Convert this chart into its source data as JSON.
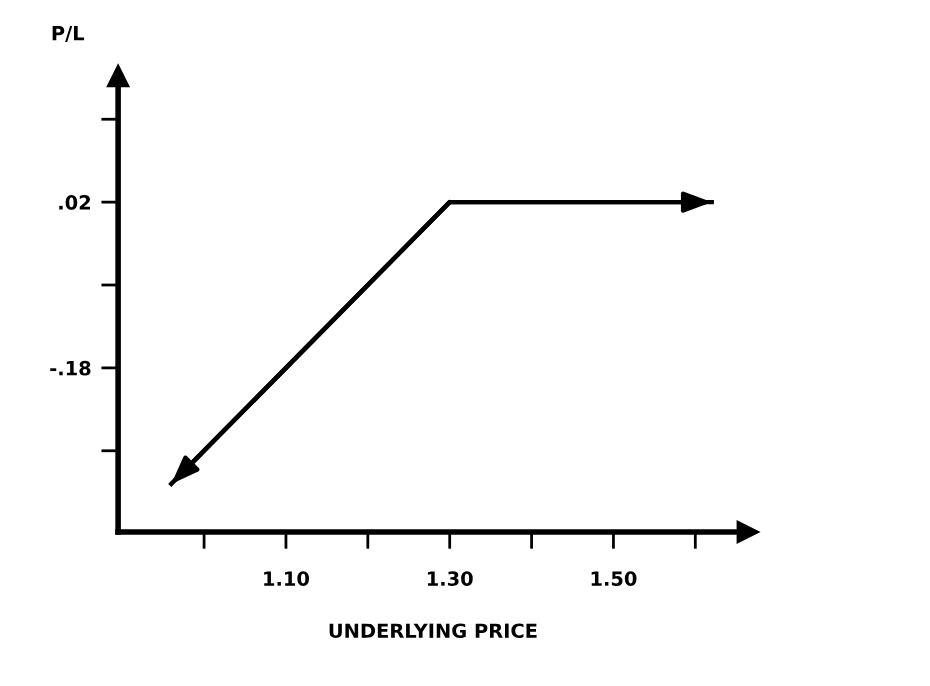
{
  "chart_data": {
    "type": "line",
    "xlabel": "UNDERLYING PRICE",
    "ylabel": "P/L",
    "x": [
      0.96,
      1.3,
      1.62
    ],
    "series": [
      {
        "color": "#000000",
        "values": [
          -0.32,
          0.02,
          0.02
        ]
      }
    ],
    "xlim": [
      0.895,
      1.664
    ],
    "ylim": [
      -0.378,
      0.172
    ],
    "xticks": [
      {
        "value": 1.0,
        "label": null
      },
      {
        "value": 1.1,
        "label": "1.10"
      },
      {
        "value": 1.2,
        "label": null
      },
      {
        "value": 1.3,
        "label": "1.30"
      },
      {
        "value": 1.4,
        "label": null
      },
      {
        "value": 1.5,
        "label": "1.50"
      },
      {
        "value": 1.6,
        "label": null
      }
    ],
    "yticks": [
      {
        "value": -0.28,
        "label": null
      },
      {
        "value": -0.18,
        "label": "-.18"
      },
      {
        "value": -0.08,
        "label": null
      },
      {
        "value": 0.02,
        "label": ".02"
      },
      {
        "value": 0.12,
        "label": null
      }
    ],
    "grid": false,
    "legend": false,
    "marker": "none",
    "line_style": "solid"
  }
}
